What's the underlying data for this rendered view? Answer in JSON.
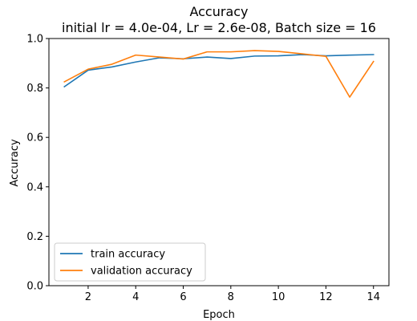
{
  "chart_data": {
    "type": "line",
    "title": "Accuracy",
    "subtitle": "initial lr = 4.0e-04, Lr = 2.6e-08, Batch size = 16",
    "xlabel": "Epoch",
    "ylabel": "Accuracy",
    "xlim": [
      0.35,
      14.65
    ],
    "ylim": [
      0.0,
      1.0
    ],
    "xticks": [
      2,
      4,
      6,
      8,
      10,
      12,
      14
    ],
    "yticks": [
      0.0,
      0.2,
      0.4,
      0.6,
      0.8,
      1.0
    ],
    "grid": false,
    "legend_position": "lower-left",
    "x": [
      1,
      2,
      3,
      4,
      5,
      6,
      7,
      8,
      9,
      10,
      11,
      12,
      13,
      14
    ],
    "series": [
      {
        "name": "train accuracy",
        "color": "#1f77b4",
        "values": [
          0.805,
          0.872,
          0.885,
          0.905,
          0.922,
          0.918,
          0.925,
          0.919,
          0.929,
          0.93,
          0.935,
          0.93,
          0.933,
          0.935
        ]
      },
      {
        "name": "validation accuracy",
        "color": "#ff7f0e",
        "values": [
          0.825,
          0.876,
          0.896,
          0.933,
          0.925,
          0.917,
          0.946,
          0.946,
          0.951,
          0.948,
          0.938,
          0.928,
          0.763,
          0.907
        ]
      }
    ]
  }
}
